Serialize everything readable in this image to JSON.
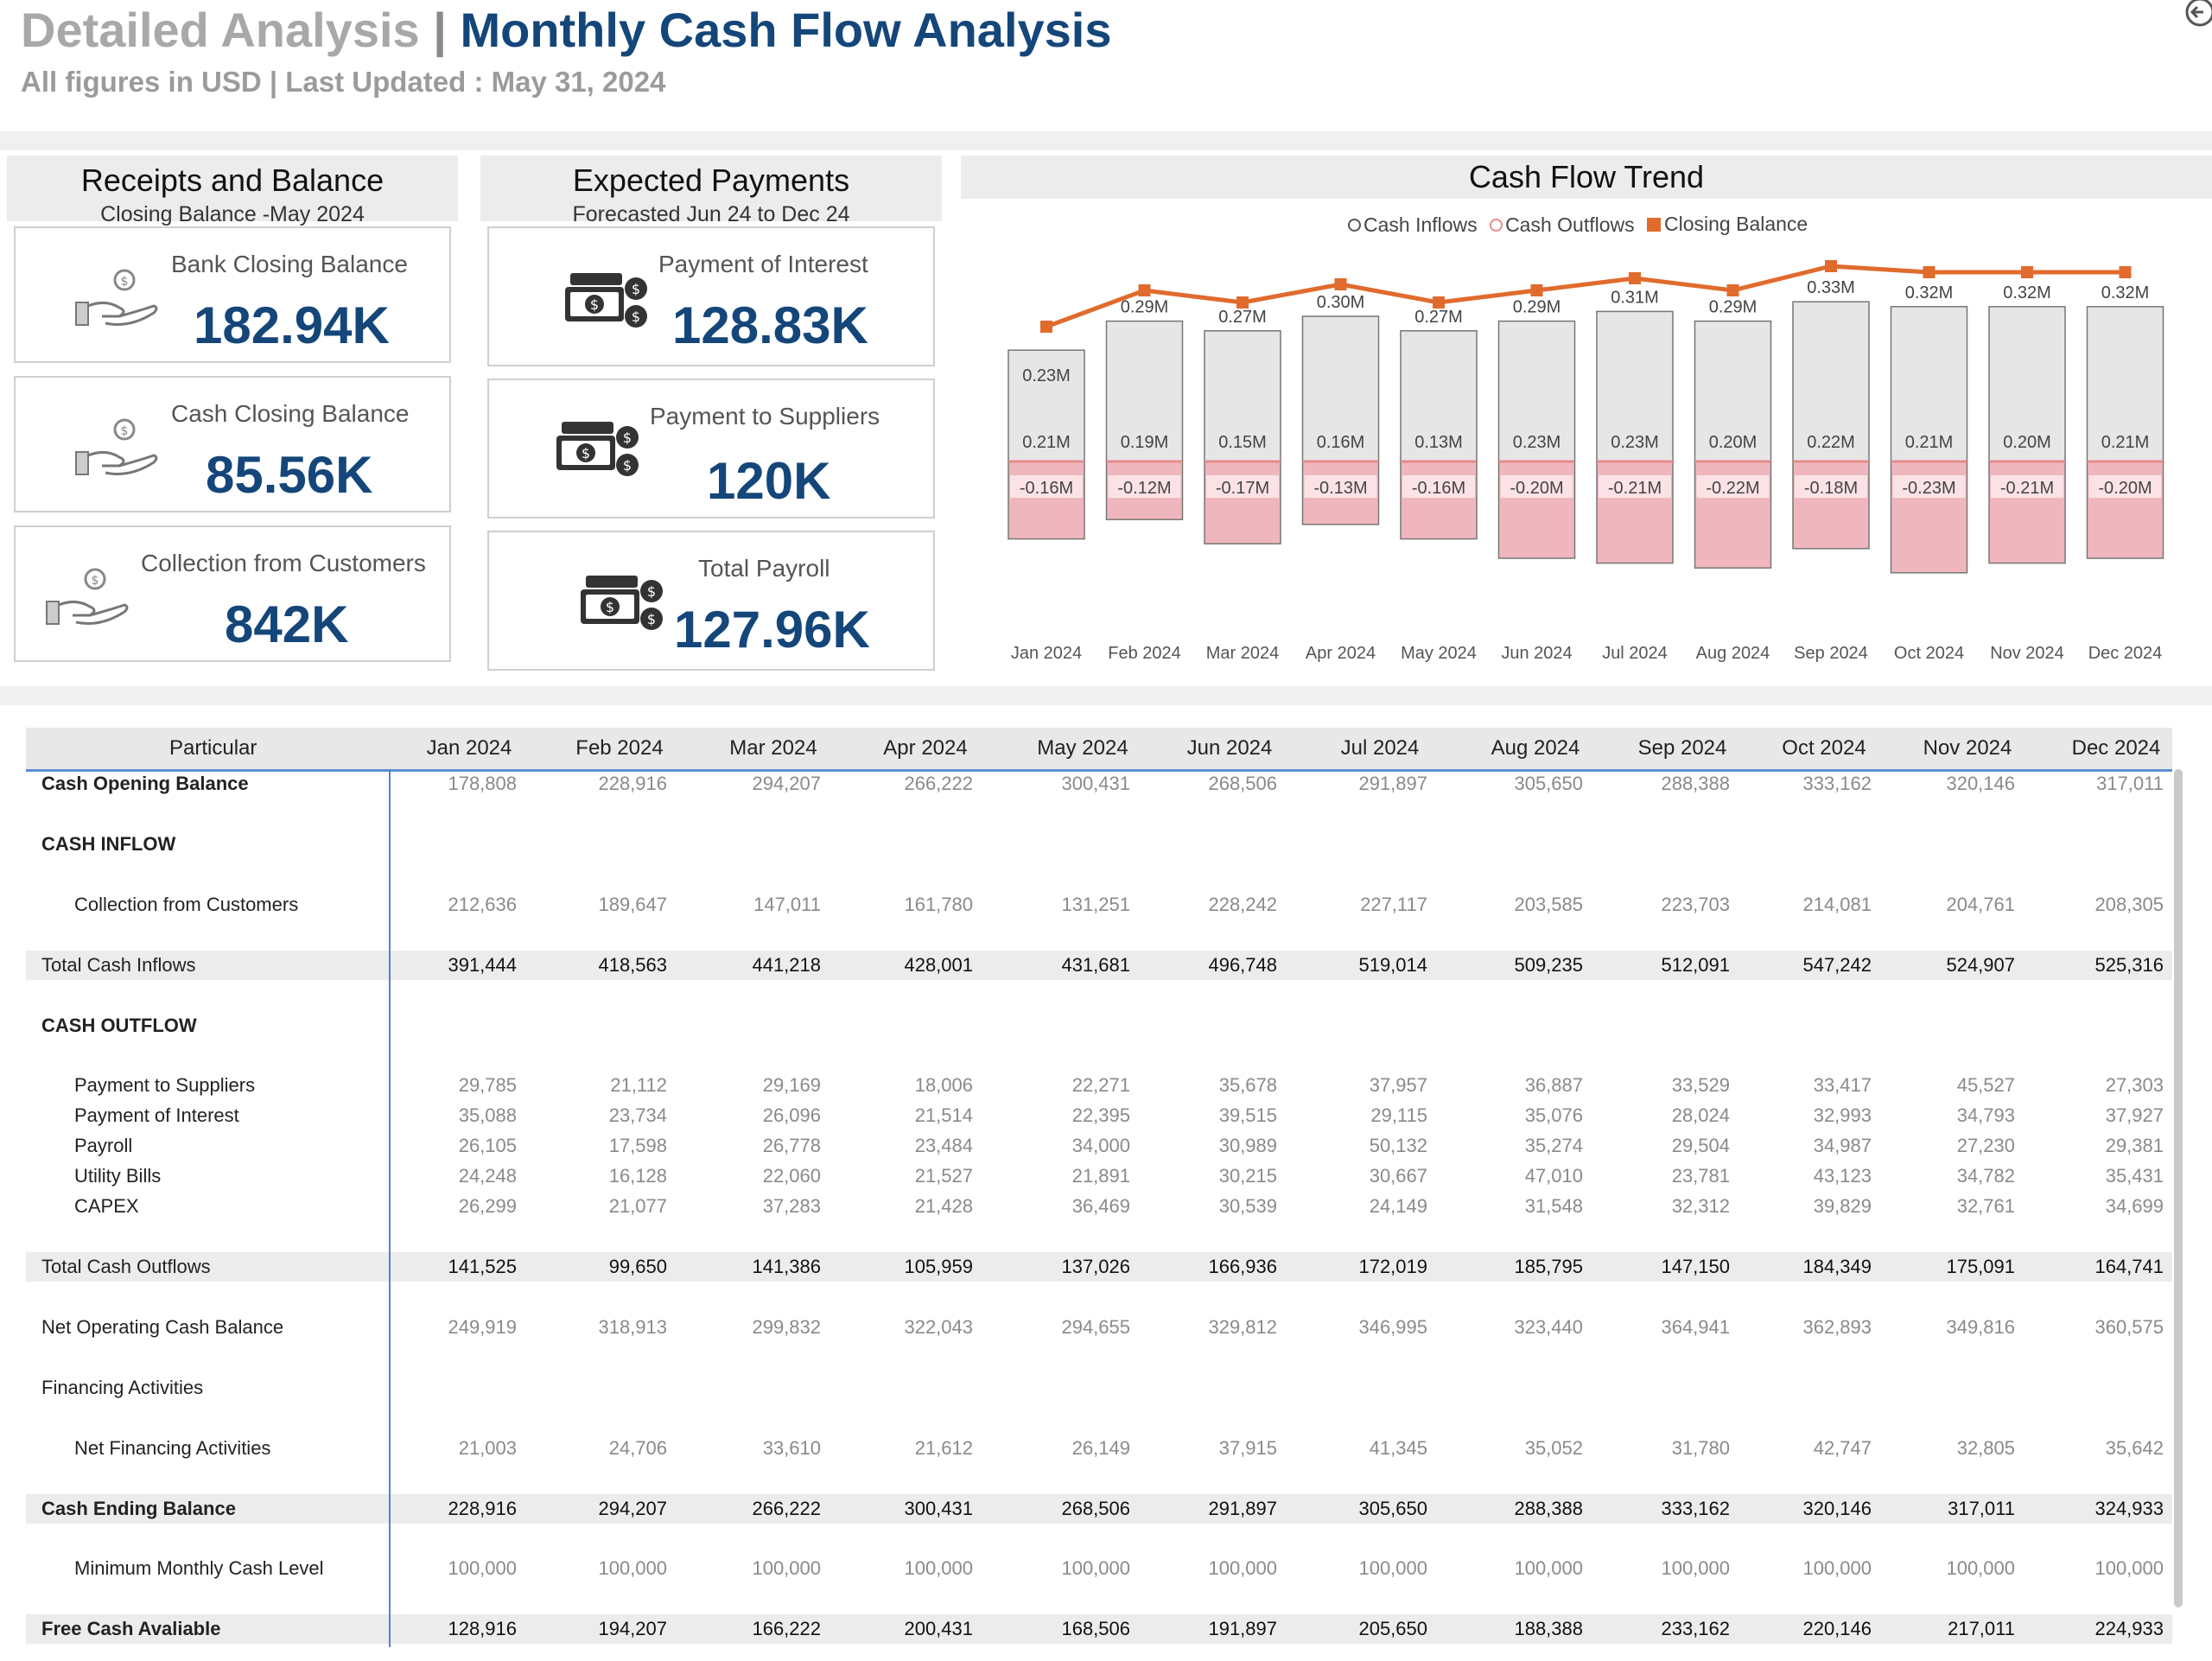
{
  "header": {
    "title_prefix": "Detailed Analysis",
    "title_sep": "|",
    "title_main": "Monthly Cash Flow Analysis",
    "subtitle": "All figures in USD | Last Updated : May 31, 2024"
  },
  "receipts": {
    "title": "Receipts and Balance",
    "subtitle": "Closing Balance -May 2024",
    "cards": [
      {
        "label": "Bank Closing Balance",
        "value": "182.94K",
        "icon": "hand-coin-icon"
      },
      {
        "label": "Cash Closing Balance",
        "value": "85.56K",
        "icon": "hand-coin-icon"
      },
      {
        "label": "Collection from Customers",
        "value": "842K",
        "icon": "hand-coin-icon"
      }
    ]
  },
  "payments": {
    "title": "Expected Payments",
    "subtitle": "Forecasted Jun 24 to Dec 24",
    "cards": [
      {
        "label": "Payment of Interest",
        "value": "128.83K",
        "icon": "cash-stack-icon"
      },
      {
        "label": "Payment to Suppliers",
        "value": "120K",
        "icon": "cash-stack-icon"
      },
      {
        "label": "Total Payroll",
        "value": "127.96K",
        "icon": "cash-stack-icon"
      }
    ]
  },
  "colors": {
    "brand_blue": "#14467a",
    "closing_line": "#e06b2d",
    "outflow_fill": "#efb7bd",
    "inflow_fill": "#e6e6e6",
    "header_grey": "#ececec",
    "table_accent": "#5b8fd0"
  },
  "chart_data": {
    "type": "bar",
    "title": "Cash Flow Trend",
    "categories": [
      "Jan 2024",
      "Feb 2024",
      "Mar 2024",
      "Apr 2024",
      "May 2024",
      "Jun 2024",
      "Jul 2024",
      "Aug 2024",
      "Sep 2024",
      "Oct 2024",
      "Nov 2024",
      "Dec 2024"
    ],
    "series": [
      {
        "name": "Cash Inflows",
        "values": [
          0.21,
          0.19,
          0.15,
          0.16,
          0.13,
          0.23,
          0.23,
          0.2,
          0.22,
          0.21,
          0.2,
          0.21
        ],
        "labels": [
          "0.21M",
          "0.19M",
          "0.15M",
          "0.16M",
          "0.13M",
          "0.23M",
          "0.23M",
          "0.20M",
          "0.22M",
          "0.21M",
          "0.20M",
          "0.21M"
        ]
      },
      {
        "name": "Cash Outflows",
        "values": [
          -0.16,
          -0.12,
          -0.17,
          -0.13,
          -0.16,
          -0.2,
          -0.21,
          -0.22,
          -0.18,
          -0.23,
          -0.21,
          -0.2
        ],
        "labels": [
          "-0.16M",
          "-0.12M",
          "-0.17M",
          "-0.13M",
          "-0.16M",
          "-0.20M",
          "-0.21M",
          "-0.22M",
          "-0.18M",
          "-0.23M",
          "-0.21M",
          "-0.20M"
        ]
      },
      {
        "name": "Closing Balance",
        "values": [
          0.23,
          0.29,
          0.27,
          0.3,
          0.27,
          0.29,
          0.31,
          0.29,
          0.33,
          0.32,
          0.32,
          0.32
        ],
        "labels": [
          "0.23M",
          "0.29M",
          "0.27M",
          "0.30M",
          "0.27M",
          "0.29M",
          "0.31M",
          "0.29M",
          "0.33M",
          "0.32M",
          "0.32M",
          "0.32M"
        ]
      }
    ],
    "legend": "top-center",
    "grid": false
  },
  "table": {
    "header_label": "Particular",
    "months": [
      "Jan 2024",
      "Feb 2024",
      "Mar 2024",
      "Apr 2024",
      "May 2024",
      "Jun 2024",
      "Jul 2024",
      "Aug 2024",
      "Sep 2024",
      "Oct 2024",
      "Nov 2024",
      "Dec 2024"
    ],
    "rows": [
      {
        "label": "Cash Opening Balance",
        "bold": true,
        "indent": false,
        "hl": false,
        "strong": false,
        "values": [
          "178,808",
          "228,916",
          "294,207",
          "266,222",
          "300,431",
          "268,506",
          "291,897",
          "305,650",
          "288,388",
          "333,162",
          "320,146",
          "317,011"
        ]
      },
      {
        "label": "CASH INFLOW",
        "bold": true,
        "indent": false,
        "hl": false,
        "strong": false,
        "values": []
      },
      {
        "label": "Collection from Customers",
        "bold": false,
        "indent": true,
        "hl": false,
        "strong": false,
        "values": [
          "212,636",
          "189,647",
          "147,011",
          "161,780",
          "131,251",
          "228,242",
          "227,117",
          "203,585",
          "223,703",
          "214,081",
          "204,761",
          "208,305"
        ]
      },
      {
        "label": "Total Cash Inflows",
        "bold": false,
        "indent": false,
        "hl": true,
        "strong": true,
        "values": [
          "391,444",
          "418,563",
          "441,218",
          "428,001",
          "431,681",
          "496,748",
          "519,014",
          "509,235",
          "512,091",
          "547,242",
          "524,907",
          "525,316"
        ]
      },
      {
        "label": "CASH OUTFLOW",
        "bold": true,
        "indent": false,
        "hl": false,
        "strong": false,
        "values": []
      },
      {
        "label": "Payment to Suppliers",
        "bold": false,
        "indent": true,
        "hl": false,
        "strong": false,
        "values": [
          "29,785",
          "21,112",
          "29,169",
          "18,006",
          "22,271",
          "35,678",
          "37,957",
          "36,887",
          "33,529",
          "33,417",
          "45,527",
          "27,303"
        ]
      },
      {
        "label": "Payment of Interest",
        "bold": false,
        "indent": true,
        "hl": false,
        "strong": false,
        "values": [
          "35,088",
          "23,734",
          "26,096",
          "21,514",
          "22,395",
          "39,515",
          "29,115",
          "35,076",
          "28,024",
          "32,993",
          "34,793",
          "37,927"
        ]
      },
      {
        "label": "Payroll",
        "bold": false,
        "indent": true,
        "hl": false,
        "strong": false,
        "values": [
          "26,105",
          "17,598",
          "26,778",
          "23,484",
          "34,000",
          "30,989",
          "50,132",
          "35,274",
          "29,504",
          "34,987",
          "27,230",
          "29,381"
        ]
      },
      {
        "label": "Utility Bills",
        "bold": false,
        "indent": true,
        "hl": false,
        "strong": false,
        "values": [
          "24,248",
          "16,128",
          "22,060",
          "21,527",
          "21,891",
          "30,215",
          "30,667",
          "47,010",
          "23,781",
          "43,123",
          "34,782",
          "35,431"
        ]
      },
      {
        "label": "CAPEX",
        "bold": false,
        "indent": true,
        "hl": false,
        "strong": false,
        "values": [
          "26,299",
          "21,077",
          "37,283",
          "21,428",
          "36,469",
          "30,539",
          "24,149",
          "31,548",
          "32,312",
          "39,829",
          "32,761",
          "34,699"
        ]
      },
      {
        "label": "Total Cash Outflows",
        "bold": false,
        "indent": false,
        "hl": true,
        "strong": true,
        "values": [
          "141,525",
          "99,650",
          "141,386",
          "105,959",
          "137,026",
          "166,936",
          "172,019",
          "185,795",
          "147,150",
          "184,349",
          "175,091",
          "164,741"
        ]
      },
      {
        "label": "Net Operating Cash Balance",
        "bold": false,
        "indent": false,
        "hl": false,
        "strong": false,
        "values": [
          "249,919",
          "318,913",
          "299,832",
          "322,043",
          "294,655",
          "329,812",
          "346,995",
          "323,440",
          "364,941",
          "362,893",
          "349,816",
          "360,575"
        ]
      },
      {
        "label": "Financing Activities",
        "bold": false,
        "indent": false,
        "hl": false,
        "strong": false,
        "values": []
      },
      {
        "label": "Net Financing Activities",
        "bold": false,
        "indent": true,
        "hl": false,
        "strong": false,
        "values": [
          "21,003",
          "24,706",
          "33,610",
          "21,612",
          "26,149",
          "37,915",
          "41,345",
          "35,052",
          "31,780",
          "42,747",
          "32,805",
          "35,642"
        ]
      },
      {
        "label": "Cash Ending Balance",
        "bold": true,
        "indent": false,
        "hl": true,
        "strong": true,
        "values": [
          "228,916",
          "294,207",
          "266,222",
          "300,431",
          "268,506",
          "291,897",
          "305,650",
          "288,388",
          "333,162",
          "320,146",
          "317,011",
          "324,933"
        ]
      },
      {
        "label": "Minimum Monthly Cash Level",
        "bold": false,
        "indent": true,
        "hl": false,
        "strong": false,
        "values": [
          "100,000",
          "100,000",
          "100,000",
          "100,000",
          "100,000",
          "100,000",
          "100,000",
          "100,000",
          "100,000",
          "100,000",
          "100,000",
          "100,000"
        ]
      },
      {
        "label": "Free Cash Avaliable",
        "bold": true,
        "indent": false,
        "hl": true,
        "strong": true,
        "values": [
          "128,916",
          "194,207",
          "166,222",
          "200,431",
          "168,506",
          "191,897",
          "205,650",
          "188,388",
          "233,162",
          "220,146",
          "217,011",
          "224,933"
        ]
      }
    ]
  }
}
